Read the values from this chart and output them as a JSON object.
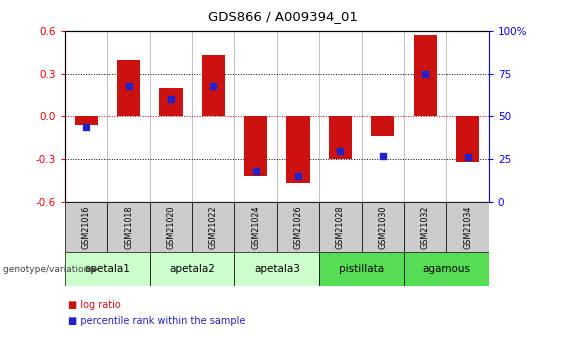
{
  "title": "GDS866 / A009394_01",
  "samples": [
    "GSM21016",
    "GSM21018",
    "GSM21020",
    "GSM21022",
    "GSM21024",
    "GSM21026",
    "GSM21028",
    "GSM21030",
    "GSM21032",
    "GSM21034"
  ],
  "log_ratio": [
    -0.06,
    0.4,
    0.2,
    0.43,
    -0.42,
    -0.47,
    -0.3,
    -0.14,
    0.57,
    -0.32
  ],
  "percentile_rank": [
    44,
    68,
    60,
    68,
    18,
    15,
    30,
    27,
    75,
    26
  ],
  "group_names": [
    "apetala1",
    "apetala2",
    "apetala3",
    "pistillata",
    "agamous"
  ],
  "group_starts": [
    0,
    2,
    4,
    6,
    8
  ],
  "group_ends": [
    2,
    4,
    6,
    8,
    10
  ],
  "group_colors_light": "#ccffcc",
  "group_colors_dark": "#55dd55",
  "group_light_indices": [
    0,
    1,
    2
  ],
  "group_dark_indices": [
    3,
    4
  ],
  "ylim": [
    -0.6,
    0.6
  ],
  "yticks_left": [
    -0.6,
    -0.3,
    0.0,
    0.3,
    0.6
  ],
  "yticks_right": [
    0,
    25,
    50,
    75,
    100
  ],
  "bar_color_red": "#cc1111",
  "bar_color_blue": "#2222cc",
  "zero_line_color": "#dd0000",
  "sample_row_bg": "#cccccc",
  "legend_label_red": "log ratio",
  "legend_label_blue": "percentile rank within the sample",
  "group_label": "genotype/variation"
}
